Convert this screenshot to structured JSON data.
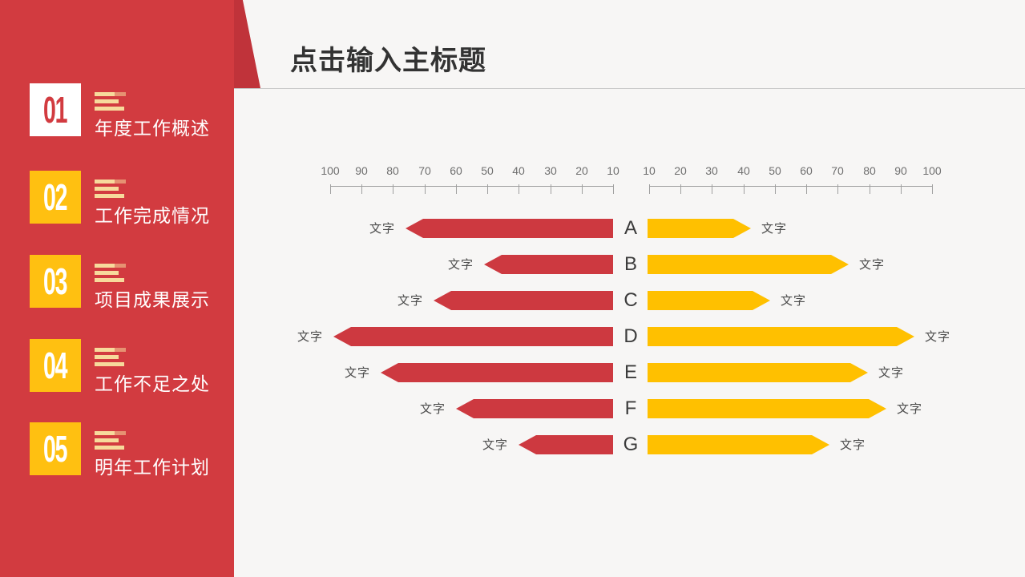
{
  "header": {
    "title": "点击输入主标题"
  },
  "sidebar": {
    "items": [
      {
        "number": "01",
        "label": "年度工作概述",
        "box_style": "white"
      },
      {
        "number": "02",
        "label": "工作完成情况",
        "box_style": "gold"
      },
      {
        "number": "03",
        "label": "项目成果展示",
        "box_style": "gold"
      },
      {
        "number": "04",
        "label": "工作不足之处",
        "box_style": "gold"
      },
      {
        "number": "05",
        "label": "明年工作计划",
        "box_style": "gold"
      }
    ]
  },
  "colors": {
    "sidebar_red": "#D23B40",
    "corner_dark_red": "#C0333A",
    "bar_red": "#CD3940",
    "bar_gold": "#FFC000",
    "badge_gold": "#FFC011",
    "icon_cream": "#F7DA9C",
    "title_text": "#333333",
    "background": "#F7F6F5"
  },
  "chart_data": {
    "type": "bar",
    "variant": "tornado",
    "title": "",
    "categories": [
      "A",
      "B",
      "C",
      "D",
      "E",
      "F",
      "G"
    ],
    "series": [
      {
        "name": "left-red",
        "direction": "left",
        "color": "#CD3940",
        "values": [
          76,
          51,
          67,
          99,
          84,
          60,
          40
        ],
        "bar_labels": [
          "文字",
          "文字",
          "文字",
          "文字",
          "文字",
          "文字",
          "文字"
        ]
      },
      {
        "name": "right-gold",
        "direction": "right",
        "color": "#FFC000",
        "values": [
          43,
          74,
          49,
          95,
          80,
          86,
          68
        ],
        "bar_labels": [
          "文字",
          "文字",
          "文字",
          "文字",
          "文字",
          "文字",
          "文字"
        ]
      }
    ],
    "axes": {
      "left": {
        "tick_labels": [
          "100",
          "90",
          "80",
          "70",
          "60",
          "50",
          "40",
          "30",
          "20",
          "10"
        ],
        "range": [
          10,
          100
        ]
      },
      "right": {
        "tick_labels": [
          "10",
          "20",
          "30",
          "40",
          "50",
          "60",
          "70",
          "80",
          "90",
          "100"
        ],
        "range": [
          10,
          100
        ]
      }
    },
    "legend": "none",
    "grid": false
  }
}
